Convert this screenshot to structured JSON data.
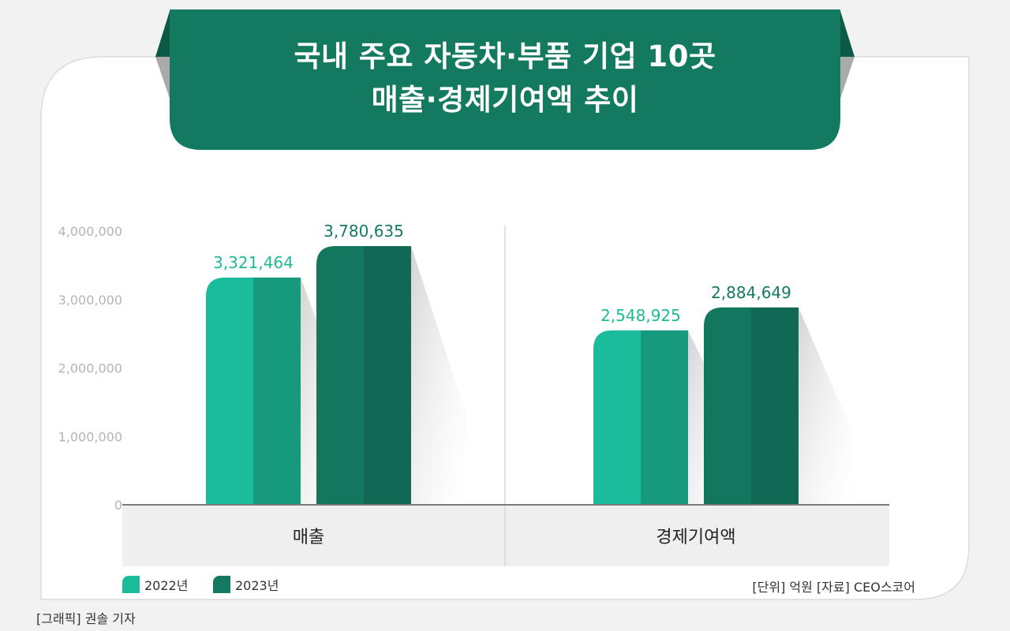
{
  "header": {
    "title_line1": "국내 주요 자동차·부품 기업 10곳",
    "title_line2": "매출·경제기여액 추이"
  },
  "chart_data": {
    "type": "bar",
    "categories": [
      "매출",
      "경제기여액"
    ],
    "series": [
      {
        "name": "2022년",
        "values": [
          3321464,
          2548925
        ],
        "labels": [
          "3,321,464",
          "2,548,925"
        ],
        "color": "#1abc9c"
      },
      {
        "name": "2023년",
        "values": [
          3780635,
          2884649
        ],
        "labels": [
          "3,780,635",
          "2,884,649"
        ],
        "color": "#137a60"
      }
    ],
    "ylim": [
      0,
      4000000
    ],
    "yticks": [
      0,
      1000000,
      2000000,
      3000000,
      4000000
    ],
    "ytick_labels": [
      "0",
      "1,000,000",
      "2,000,000",
      "3,000,000",
      "4,000,000"
    ],
    "label_colors": [
      "#1fb996",
      "#137a60"
    ]
  },
  "footer": {
    "unit_source": "[단위] 억원   [자료] CEO스코어",
    "credit": "[그래픽] 권솔 기자"
  },
  "colors": {
    "banner": "#137a60",
    "banner_dark": "#0c5a45",
    "bar_2022_light": "#1abc9c",
    "bar_2022_dark": "#17997e",
    "bar_2023_light": "#13775e",
    "bar_2023_dark": "#116853"
  }
}
